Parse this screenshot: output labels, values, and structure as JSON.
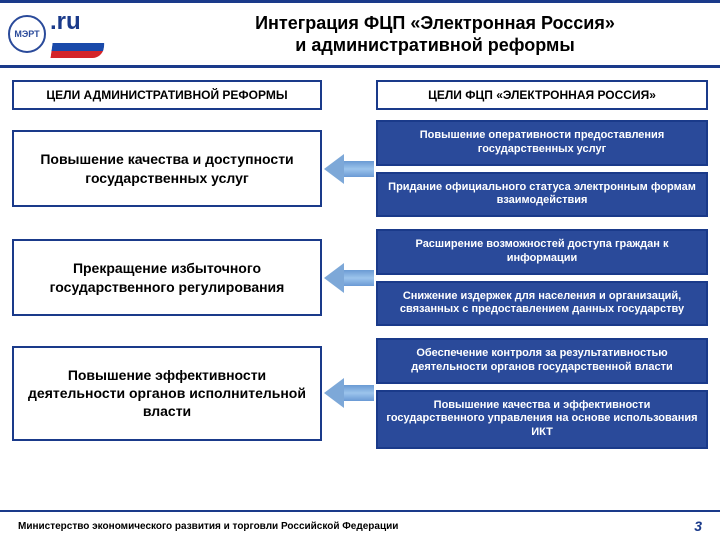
{
  "colors": {
    "primary_blue": "#2a4a9a",
    "border_blue": "#1a3a8a",
    "arrow_fill": "#7da8d8",
    "white": "#ffffff",
    "flag_white": "#ffffff",
    "flag_blue": "#1a4aaa",
    "flag_red": "#d4252a"
  },
  "header": {
    "logo_circle_text": "МЭРТ",
    "ru_label": ".ru",
    "title_line1": "Интеграция ФЦП «Электронная Россия»",
    "title_line2": "и административной реформы"
  },
  "columns": {
    "left_header": "ЦЕЛИ АДМИНИСТРАТИВНОЙ РЕФОРМЫ",
    "right_header": "ЦЕЛИ ФЦП «ЭЛЕКТРОННАЯ РОССИЯ»"
  },
  "rows": [
    {
      "left": "Повышение качества и доступности государственных услуг",
      "right": [
        "Повышение оперативности предоставления государственных услуг",
        "Придание официального статуса электронным формам взаимодействия"
      ]
    },
    {
      "left": "Прекращение избыточного государственного регулирования",
      "right": [
        "Расширение возможностей доступа граждан к информации",
        "Снижение издержек для населения и организаций, связанных с предоставлением данных государству"
      ]
    },
    {
      "left": "Повышение эффективности деятельности органов исполнительной власти",
      "right": [
        "Обеспечение контроля за результативностью деятельности органов государственной власти",
        "Повышение качества и эффективности государственного управления на основе использования ИКТ"
      ]
    }
  ],
  "footer": {
    "ministry": "Министерство экономического развития и торговли Российской Федерации",
    "page": "3"
  }
}
